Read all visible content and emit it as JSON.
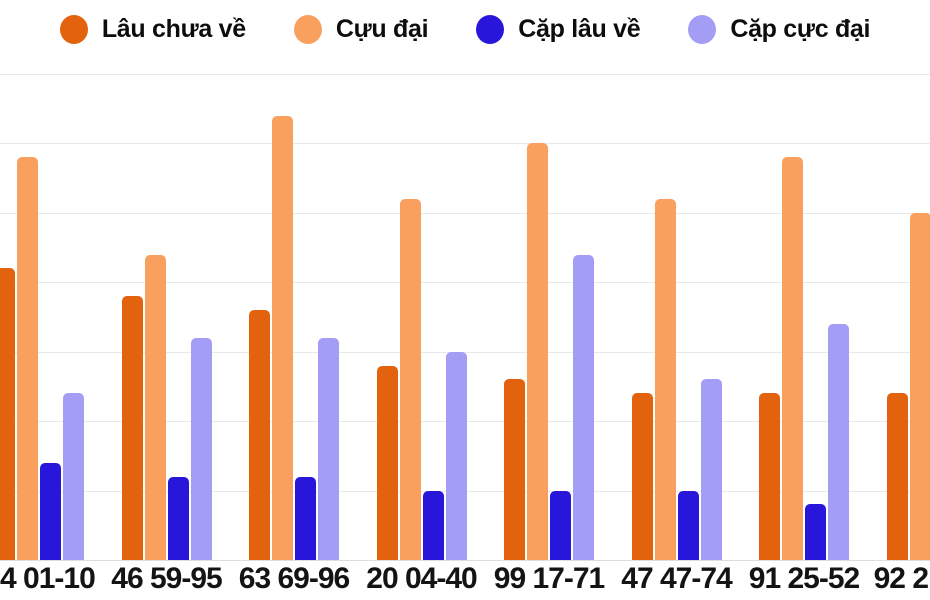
{
  "legend": {
    "items": [
      {
        "label": "Lâu chưa về",
        "color": "#e2620e"
      },
      {
        "label": "Cựu đại",
        "color": "#f9a05f"
      },
      {
        "label": "Cặp lâu về",
        "color": "#2816db"
      },
      {
        "label": "Cặp cực đại",
        "color": "#a49df6"
      }
    ]
  },
  "chart_data": {
    "type": "bar",
    "title": "",
    "xlabel": "",
    "ylabel": "",
    "categories": [
      "4 01-10",
      "46 59-95",
      "63 69-96",
      "20 04-40",
      "99 17-71",
      "47 47-74",
      "91 25-52",
      "92 2"
    ],
    "series": [
      {
        "name": "Lâu chưa về",
        "color": "#e2620e",
        "values": [
          21,
          19,
          18,
          14,
          13,
          12,
          12,
          12
        ]
      },
      {
        "name": "Cựu đại",
        "color": "#f9a05f",
        "values": [
          29,
          22,
          32,
          26,
          30,
          26,
          29,
          25
        ]
      },
      {
        "name": "Cặp lâu về",
        "color": "#2816db",
        "values": [
          7,
          6,
          6,
          5,
          5,
          5,
          4,
          null
        ]
      },
      {
        "name": "Cặp cực đại",
        "color": "#a49df6",
        "values": [
          12,
          16,
          16,
          15,
          22,
          13,
          17,
          null
        ]
      }
    ],
    "ylim": [
      0,
      35
    ],
    "grid_step": 5,
    "grid": true,
    "legend_position": "top",
    "y_axis_labels_visible": false
  },
  "colors": {
    "gridline": "#e9e9e9",
    "text": "#141414",
    "background": "#ffffff"
  }
}
